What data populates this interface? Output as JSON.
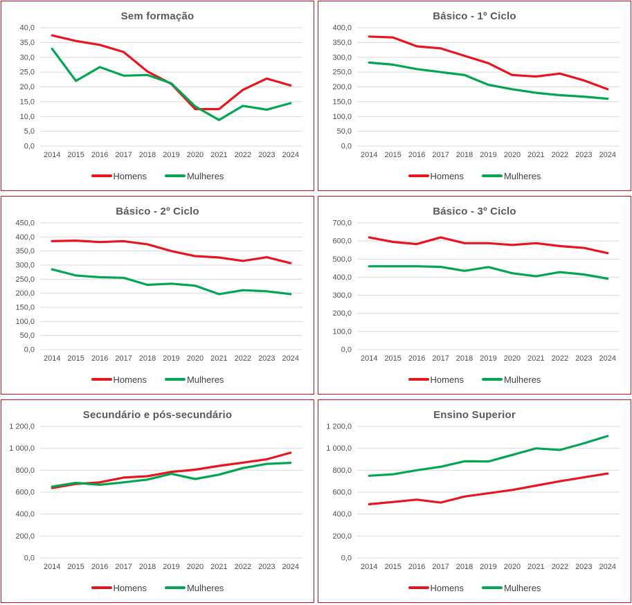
{
  "page": {
    "background": "#ffffff",
    "panel_border_color": "#e30613"
  },
  "colors": {
    "homens": "#e9141d",
    "mulheres": "#00a651",
    "grid": "#d9d9d9",
    "title_text": "#595959",
    "axis_text": "#4d4d4d",
    "legend_text": "#404040"
  },
  "years": [
    "2014",
    "2015",
    "2016",
    "2017",
    "2018",
    "2019",
    "2020",
    "2021",
    "2022",
    "2023",
    "2024"
  ],
  "chart_data": [
    {
      "type": "line",
      "title": "Sem formação",
      "ylim": [
        0,
        40
      ],
      "ystep": 5,
      "ytick_labels": [
        "0,0",
        "5,0",
        "10,0",
        "15,0",
        "20,0",
        "25,0",
        "30,0",
        "35,0",
        "40,0"
      ],
      "grid": true,
      "legend_position": "bottom",
      "series": [
        {
          "name": "Homens",
          "color_key": "homens",
          "values": [
            37.4,
            35.5,
            34.2,
            31.8,
            25.2,
            21.0,
            12.5,
            12.5,
            19.0,
            22.8,
            20.5
          ]
        },
        {
          "name": "Mulheres",
          "color_key": "mulheres",
          "values": [
            32.9,
            22.0,
            26.7,
            23.8,
            24.0,
            21.2,
            13.4,
            8.8,
            13.6,
            12.3,
            14.5
          ]
        }
      ]
    },
    {
      "type": "line",
      "title": "Básico - 1º Ciclo",
      "ylim": [
        0,
        400
      ],
      "ystep": 50,
      "ytick_labels": [
        "0,0",
        "50,0",
        "100,0",
        "150,0",
        "200,0",
        "250,0",
        "300,0",
        "350,0",
        "400,0"
      ],
      "grid": true,
      "legend_position": "bottom",
      "series": [
        {
          "name": "Homens",
          "color_key": "homens",
          "values": [
            370,
            367,
            337,
            330,
            305,
            280,
            240,
            235,
            245,
            222,
            192
          ]
        },
        {
          "name": "Mulheres",
          "color_key": "mulheres",
          "values": [
            282,
            275,
            260,
            250,
            240,
            207,
            192,
            180,
            172,
            167,
            160
          ]
        }
      ]
    },
    {
      "type": "line",
      "title": "Básico - 2º Ciclo",
      "ylim": [
        0,
        450
      ],
      "ystep": 50,
      "ytick_labels": [
        "0,0",
        "50,0",
        "100,0",
        "150,0",
        "200,0",
        "250,0",
        "300,0",
        "350,0",
        "400,0",
        "450,0"
      ],
      "grid": true,
      "legend_position": "bottom",
      "series": [
        {
          "name": "Homens",
          "color_key": "homens",
          "values": [
            385,
            387,
            382,
            385,
            374,
            350,
            332,
            327,
            315,
            328,
            307
          ]
        },
        {
          "name": "Mulheres",
          "color_key": "mulheres",
          "values": [
            285,
            263,
            257,
            255,
            230,
            234,
            227,
            197,
            211,
            207,
            197
          ]
        }
      ]
    },
    {
      "type": "line",
      "title": "Básico - 3º Ciclo",
      "ylim": [
        0,
        700
      ],
      "ystep": 100,
      "ytick_labels": [
        "0,0",
        "100,0",
        "200,0",
        "300,0",
        "400,0",
        "500,0",
        "600,0",
        "700,0"
      ],
      "grid": true,
      "legend_position": "bottom",
      "series": [
        {
          "name": "Homens",
          "color_key": "homens",
          "values": [
            620,
            595,
            583,
            620,
            588,
            588,
            578,
            588,
            572,
            562,
            533
          ]
        },
        {
          "name": "Mulheres",
          "color_key": "mulheres",
          "values": [
            460,
            460,
            460,
            457,
            435,
            456,
            422,
            405,
            428,
            415,
            392
          ]
        }
      ]
    },
    {
      "type": "line",
      "title": "Secundário e pós-secundário",
      "ylim": [
        0,
        1200
      ],
      "ystep": 200,
      "ytick_labels": [
        "0,0",
        "200,0",
        "400,0",
        "600,0",
        "800,0",
        "1 000,0",
        "1 200,0"
      ],
      "grid": true,
      "legend_position": "bottom",
      "series": [
        {
          "name": "Homens",
          "color_key": "homens",
          "values": [
            638,
            675,
            690,
            733,
            745,
            785,
            805,
            840,
            870,
            900,
            960
          ]
        },
        {
          "name": "Mulheres",
          "color_key": "mulheres",
          "values": [
            650,
            685,
            667,
            690,
            715,
            768,
            720,
            760,
            820,
            858,
            868
          ]
        }
      ]
    },
    {
      "type": "line",
      "title": "Ensino Superior",
      "ylim": [
        0,
        1200
      ],
      "ystep": 200,
      "ytick_labels": [
        "0,0",
        "200,0",
        "400,0",
        "600,0",
        "800,0",
        "1 000,0",
        "1 200,0"
      ],
      "grid": true,
      "legend_position": "bottom",
      "series": [
        {
          "name": "Homens",
          "color_key": "homens",
          "values": [
            490,
            510,
            532,
            505,
            560,
            590,
            620,
            660,
            700,
            735,
            770
          ]
        },
        {
          "name": "Mulheres",
          "color_key": "mulheres",
          "values": [
            750,
            763,
            800,
            832,
            882,
            880,
            940,
            1000,
            985,
            1045,
            1112
          ]
        }
      ]
    }
  ]
}
